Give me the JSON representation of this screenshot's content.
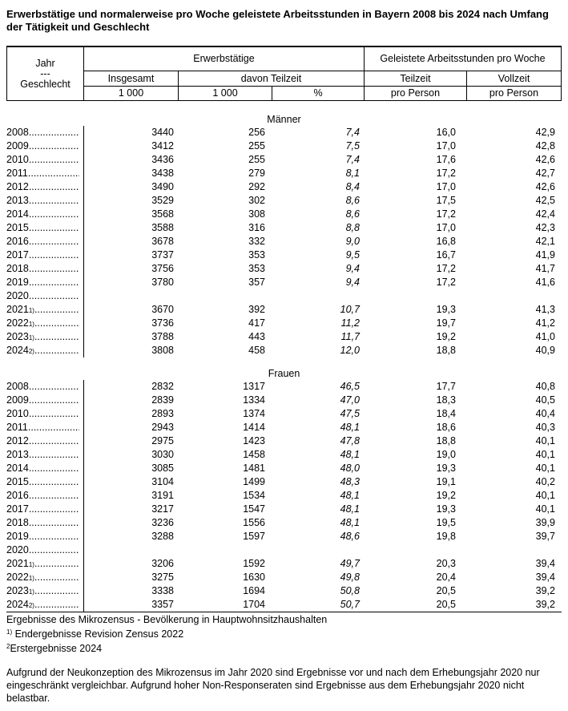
{
  "title": "Erwerbstätige und normalerweise pro Woche geleistete Arbeitsstunden in Bayern 2008 bis 2024 nach Umfang der Tätigkeit und Geschlecht",
  "header": {
    "rowhead_line1": "Jahr",
    "rowhead_line2": "---",
    "rowhead_line3": "Geschlecht",
    "group_erwerbstaetige": "Erwerbstätige",
    "group_arbeitsstunden": "Geleistete Arbeitsstunden pro Woche",
    "col_insgesamt": "Insgesamt",
    "col_davon_teilzeit": "davon Teilzeit",
    "col_teilzeit": "Teilzeit",
    "col_vollzeit": "Vollzeit",
    "unit_insgesamt": "1 000",
    "unit_teilzeit_1000": "1 000",
    "unit_percent": "%",
    "unit_teilzeit_pro_person": "pro Person",
    "unit_vollzeit_pro_person": "pro Person"
  },
  "leader_dots": "................................................................",
  "sections": [
    {
      "heading": "Männer",
      "rows": [
        {
          "year": "2008",
          "sup": "",
          "insgesamt": "3440",
          "teilzeit_1000": "256",
          "teilzeit_pct": "7,4",
          "teilzeit_stunden": "16,0",
          "vollzeit_stunden": "42,9"
        },
        {
          "year": "2009",
          "sup": "",
          "insgesamt": "3412",
          "teilzeit_1000": "255",
          "teilzeit_pct": "7,5",
          "teilzeit_stunden": "17,0",
          "vollzeit_stunden": "42,8"
        },
        {
          "year": "2010",
          "sup": "",
          "insgesamt": "3436",
          "teilzeit_1000": "255",
          "teilzeit_pct": "7,4",
          "teilzeit_stunden": "17,6",
          "vollzeit_stunden": "42,6"
        },
        {
          "year": "2011",
          "sup": "",
          "insgesamt": "3438",
          "teilzeit_1000": "279",
          "teilzeit_pct": "8,1",
          "teilzeit_stunden": "17,2",
          "vollzeit_stunden": "42,7"
        },
        {
          "year": "2012",
          "sup": "",
          "insgesamt": "3490",
          "teilzeit_1000": "292",
          "teilzeit_pct": "8,4",
          "teilzeit_stunden": "17,0",
          "vollzeit_stunden": "42,6"
        },
        {
          "year": "2013",
          "sup": "",
          "insgesamt": "3529",
          "teilzeit_1000": "302",
          "teilzeit_pct": "8,6",
          "teilzeit_stunden": "17,5",
          "vollzeit_stunden": "42,5"
        },
        {
          "year": "2014",
          "sup": "",
          "insgesamt": "3568",
          "teilzeit_1000": "308",
          "teilzeit_pct": "8,6",
          "teilzeit_stunden": "17,2",
          "vollzeit_stunden": "42,4"
        },
        {
          "year": "2015",
          "sup": "",
          "insgesamt": "3588",
          "teilzeit_1000": "316",
          "teilzeit_pct": "8,8",
          "teilzeit_stunden": "17,0",
          "vollzeit_stunden": "42,3"
        },
        {
          "year": "2016",
          "sup": "",
          "insgesamt": "3678",
          "teilzeit_1000": "332",
          "teilzeit_pct": "9,0",
          "teilzeit_stunden": "16,8",
          "vollzeit_stunden": "42,1"
        },
        {
          "year": "2017",
          "sup": "",
          "insgesamt": "3737",
          "teilzeit_1000": "353",
          "teilzeit_pct": "9,5",
          "teilzeit_stunden": "16,7",
          "vollzeit_stunden": "41,9"
        },
        {
          "year": "2018",
          "sup": "",
          "insgesamt": "3756",
          "teilzeit_1000": "353",
          "teilzeit_pct": "9,4",
          "teilzeit_stunden": "17,2",
          "vollzeit_stunden": "41,7"
        },
        {
          "year": "2019",
          "sup": "",
          "insgesamt": "3780",
          "teilzeit_1000": "357",
          "teilzeit_pct": "9,4",
          "teilzeit_stunden": "17,2",
          "vollzeit_stunden": "41,6"
        },
        {
          "year": "2020",
          "sup": "",
          "insgesamt": "",
          "teilzeit_1000": "",
          "teilzeit_pct": "",
          "teilzeit_stunden": "",
          "vollzeit_stunden": ""
        },
        {
          "year": "2021",
          "sup": "1)",
          "insgesamt": "3670",
          "teilzeit_1000": "392",
          "teilzeit_pct": "10,7",
          "teilzeit_stunden": "19,3",
          "vollzeit_stunden": "41,3"
        },
        {
          "year": "2022",
          "sup": "1)",
          "insgesamt": "3736",
          "teilzeit_1000": "417",
          "teilzeit_pct": "11,2",
          "teilzeit_stunden": "19,7",
          "vollzeit_stunden": "41,2"
        },
        {
          "year": "2023",
          "sup": "1)",
          "insgesamt": "3788",
          "teilzeit_1000": "443",
          "teilzeit_pct": "11,7",
          "teilzeit_stunden": "19,2",
          "vollzeit_stunden": "41,0"
        },
        {
          "year": "2024",
          "sup": "2)",
          "insgesamt": "3808",
          "teilzeit_1000": "458",
          "teilzeit_pct": "12,0",
          "teilzeit_stunden": "18,8",
          "vollzeit_stunden": "40,9"
        }
      ]
    },
    {
      "heading": "Frauen",
      "rows": [
        {
          "year": "2008",
          "sup": "",
          "insgesamt": "2832",
          "teilzeit_1000": "1317",
          "teilzeit_pct": "46,5",
          "teilzeit_stunden": "17,7",
          "vollzeit_stunden": "40,8"
        },
        {
          "year": "2009",
          "sup": "",
          "insgesamt": "2839",
          "teilzeit_1000": "1334",
          "teilzeit_pct": "47,0",
          "teilzeit_stunden": "18,3",
          "vollzeit_stunden": "40,5"
        },
        {
          "year": "2010",
          "sup": "",
          "insgesamt": "2893",
          "teilzeit_1000": "1374",
          "teilzeit_pct": "47,5",
          "teilzeit_stunden": "18,4",
          "vollzeit_stunden": "40,4"
        },
        {
          "year": "2011",
          "sup": "",
          "insgesamt": "2943",
          "teilzeit_1000": "1414",
          "teilzeit_pct": "48,1",
          "teilzeit_stunden": "18,6",
          "vollzeit_stunden": "40,3"
        },
        {
          "year": "2012",
          "sup": "",
          "insgesamt": "2975",
          "teilzeit_1000": "1423",
          "teilzeit_pct": "47,8",
          "teilzeit_stunden": "18,8",
          "vollzeit_stunden": "40,1"
        },
        {
          "year": "2013",
          "sup": "",
          "insgesamt": "3030",
          "teilzeit_1000": "1458",
          "teilzeit_pct": "48,1",
          "teilzeit_stunden": "19,0",
          "vollzeit_stunden": "40,1"
        },
        {
          "year": "2014",
          "sup": "",
          "insgesamt": "3085",
          "teilzeit_1000": "1481",
          "teilzeit_pct": "48,0",
          "teilzeit_stunden": "19,3",
          "vollzeit_stunden": "40,1"
        },
        {
          "year": "2015",
          "sup": "",
          "insgesamt": "3104",
          "teilzeit_1000": "1499",
          "teilzeit_pct": "48,3",
          "teilzeit_stunden": "19,1",
          "vollzeit_stunden": "40,2"
        },
        {
          "year": "2016",
          "sup": "",
          "insgesamt": "3191",
          "teilzeit_1000": "1534",
          "teilzeit_pct": "48,1",
          "teilzeit_stunden": "19,2",
          "vollzeit_stunden": "40,1"
        },
        {
          "year": "2017",
          "sup": "",
          "insgesamt": "3217",
          "teilzeit_1000": "1547",
          "teilzeit_pct": "48,1",
          "teilzeit_stunden": "19,3",
          "vollzeit_stunden": "40,1"
        },
        {
          "year": "2018",
          "sup": "",
          "insgesamt": "3236",
          "teilzeit_1000": "1556",
          "teilzeit_pct": "48,1",
          "teilzeit_stunden": "19,5",
          "vollzeit_stunden": "39,9"
        },
        {
          "year": "2019",
          "sup": "",
          "insgesamt": "3288",
          "teilzeit_1000": "1597",
          "teilzeit_pct": "48,6",
          "teilzeit_stunden": "19,8",
          "vollzeit_stunden": "39,7"
        },
        {
          "year": "2020",
          "sup": "",
          "insgesamt": "",
          "teilzeit_1000": "",
          "teilzeit_pct": "",
          "teilzeit_stunden": "",
          "vollzeit_stunden": ""
        },
        {
          "year": "2021",
          "sup": "1)",
          "insgesamt": "3206",
          "teilzeit_1000": "1592",
          "teilzeit_pct": "49,7",
          "teilzeit_stunden": "20,3",
          "vollzeit_stunden": "39,4"
        },
        {
          "year": "2022",
          "sup": "1)",
          "insgesamt": "3275",
          "teilzeit_1000": "1630",
          "teilzeit_pct": "49,8",
          "teilzeit_stunden": "20,4",
          "vollzeit_stunden": "39,4"
        },
        {
          "year": "2023",
          "sup": "1)",
          "insgesamt": "3338",
          "teilzeit_1000": "1694",
          "teilzeit_pct": "50,8",
          "teilzeit_stunden": "20,5",
          "vollzeit_stunden": "39,2"
        },
        {
          "year": "2024",
          "sup": "2)",
          "insgesamt": "3357",
          "teilzeit_1000": "1704",
          "teilzeit_pct": "50,7",
          "teilzeit_stunden": "20,5",
          "vollzeit_stunden": "39,2"
        }
      ]
    }
  ],
  "footnotes": {
    "source": "Ergebnisse des Mikrozensus - Bevölkerung in Hauptwohnsitzhaushalten",
    "fn1_sup": "1)",
    "fn1_text": " Endergebnisse Revision Zensus 2022",
    "fn2_sup": "2",
    "fn2_text": "Erstergebnisse 2024",
    "note": "Aufgrund der Neukonzeption des Mikrozensus im Jahr 2020 sind Ergebnisse vor und nach dem Erhebungsjahr 2020 nur eingeschränkt vergleichbar. Aufgrund hoher Non-Responseraten sind Ergebnisse aus dem Erhebungsjahr 2020 nicht belastbar."
  }
}
